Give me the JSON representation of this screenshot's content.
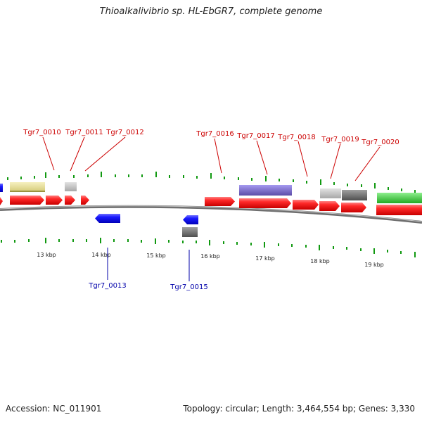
{
  "title": "Thioalkalivibrio sp. HL-EbGR7, complete genome",
  "footer": {
    "accession": "Accession: NC_011901",
    "summary": "Topology: circular; Length: 3,464,554 bp; Genes: 3,330"
  },
  "scale": {
    "tick_labels": [
      "13 kbp",
      "14 kbp",
      "15 kbp",
      "16 kbp",
      "17 kbp",
      "18 kbp",
      "19 kbp"
    ]
  },
  "gene_labels": {
    "top": [
      "Tgr7_0010",
      "Tgr7_0011",
      "Tgr7_0012",
      "Tgr7_0016",
      "Tgr7_0017",
      "Tgr7_0018",
      "Tgr7_0019",
      "Tgr7_0020"
    ],
    "bottom": [
      "Tgr7_0013",
      "Tgr7_0015"
    ]
  },
  "colors": {
    "forward_cds": "#ee0000",
    "reverse_cds": "#0000ee",
    "top_label": "#cc0000",
    "bottom_label": "#0000aa",
    "tick": "#119911",
    "backbone": "#777777",
    "feature_yellow": "#e8e098",
    "feature_purple": "#7d6cc7",
    "feature_light_gray": "#c4c4c4",
    "feature_dark_gray": "#707070",
    "feature_green": "#44cc44"
  }
}
